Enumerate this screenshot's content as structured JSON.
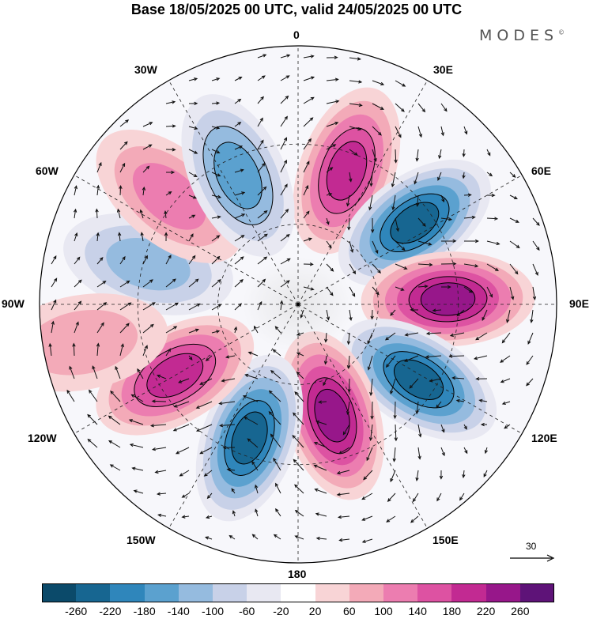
{
  "title": "Base 18/05/2025 00 UTC, valid 24/05/2025 00 UTC",
  "brand": "MODES",
  "brand_mark": "©",
  "longitude_labels": {
    "lon_0": "0",
    "lon_30e": "30E",
    "lon_60e": "60E",
    "lon_90e": "90E",
    "lon_120e": "120E",
    "lon_150e": "150E",
    "lon_180": "180",
    "lon_150w": "150W",
    "lon_120w": "120W",
    "lon_90w": "90W",
    "lon_60w": "60W",
    "lon_30w": "30W"
  },
  "reference_vector": {
    "label": "30"
  },
  "colorbar": {
    "colors": [
      "#0b4a6a",
      "#176691",
      "#2f86bb",
      "#5ba1cf",
      "#95bbdf",
      "#c8d1e8",
      "#e8e8f2",
      "#ffffff",
      "#f8d4d6",
      "#f3aab8",
      "#ec7db0",
      "#dd52a2",
      "#c22a92",
      "#97178a",
      "#5e1378"
    ],
    "ticks": [
      "-260",
      "-220",
      "-180",
      "-140",
      "-100",
      "-60",
      "-20",
      "20",
      "60",
      "100",
      "140",
      "180",
      "220",
      "260"
    ]
  },
  "anomaly_centers": [
    {
      "lon_deg": 20,
      "colat": 0.55,
      "value": 200
    },
    {
      "lon_deg": 55,
      "colat": 0.55,
      "value": -260
    },
    {
      "lon_deg": 88,
      "colat": 0.58,
      "value": 260
    },
    {
      "lon_deg": 122,
      "colat": 0.55,
      "value": -260
    },
    {
      "lon_deg": 163,
      "colat": 0.45,
      "value": 250
    },
    {
      "lon_deg": 200,
      "colat": 0.55,
      "value": -240
    },
    {
      "lon_deg": 240,
      "colat": 0.55,
      "value": 230
    },
    {
      "lon_deg": 285,
      "colat": 0.6,
      "value": -120
    },
    {
      "lon_deg": 310,
      "colat": 0.65,
      "value": 130
    },
    {
      "lon_deg": 335,
      "colat": 0.55,
      "value": -160
    },
    {
      "lon_deg": 260,
      "colat": 0.85,
      "value": 80
    }
  ]
}
